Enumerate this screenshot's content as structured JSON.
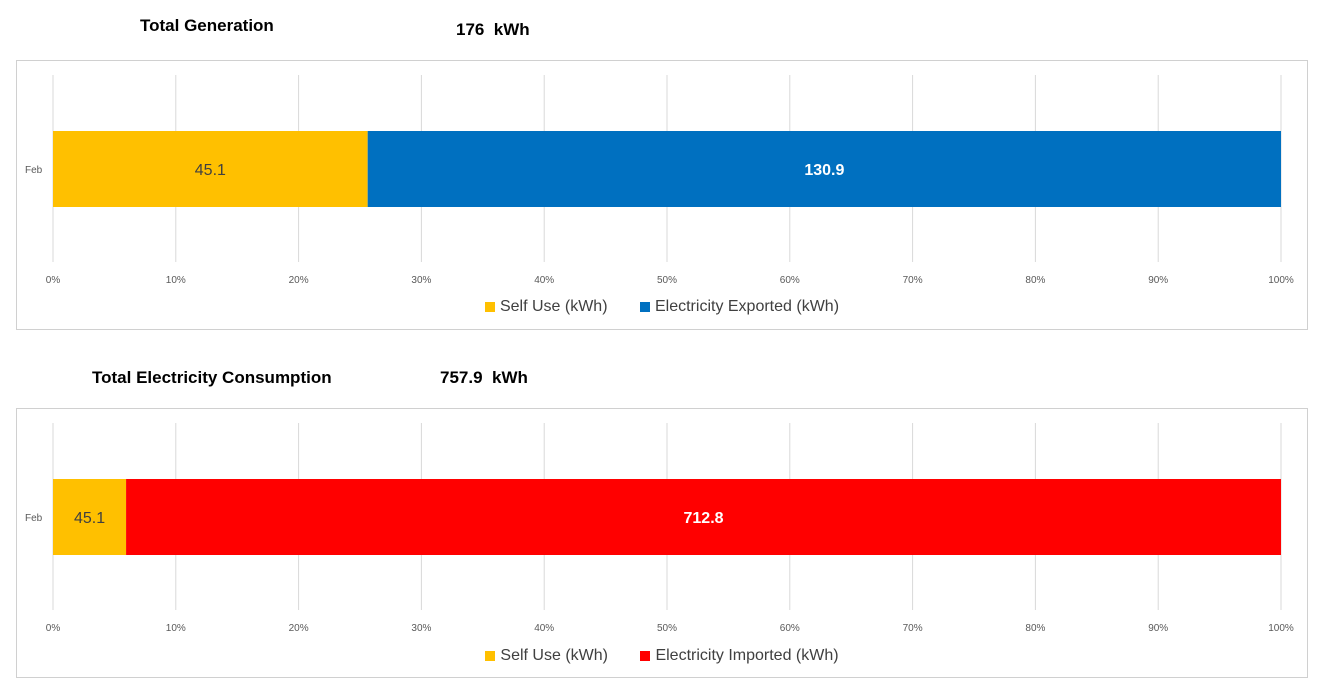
{
  "charts": [
    {
      "heading": "Total Generation",
      "total": "176  kWh",
      "legend_items": [
        {
          "label": "Self Use (kWh)",
          "color": "#FFC000"
        },
        {
          "label": "Electricity Exported (kWh)",
          "color": "#0070C0"
        }
      ]
    },
    {
      "heading": "Total Electricity Consumption",
      "total": "757.9  kWh",
      "legend_items": [
        {
          "label": "Self Use (kWh)",
          "color": "#FFC000"
        },
        {
          "label": "Electricity Imported (kWh)",
          "color": "#FF0000"
        }
      ]
    }
  ],
  "chart_data": [
    {
      "type": "bar",
      "orientation": "horizontal",
      "stacked": "percent",
      "categories": [
        "Feb"
      ],
      "series": [
        {
          "name": "Self Use (kWh)",
          "values": [
            45.1
          ],
          "labels": [
            "45.1"
          ],
          "color": "#FFC000",
          "label_color": "#404040"
        },
        {
          "name": "Electricity Exported (kWh)",
          "values": [
            130.9
          ],
          "labels": [
            "130.9"
          ],
          "color": "#0070C0",
          "label_color": "#ffffff"
        }
      ],
      "x_ticks": [
        "0%",
        "10%",
        "20%",
        "30%",
        "40%",
        "50%",
        "60%",
        "70%",
        "80%",
        "90%",
        "100%"
      ],
      "xlim": [
        0,
        100
      ],
      "grid": true,
      "legend": "bottom"
    },
    {
      "type": "bar",
      "orientation": "horizontal",
      "stacked": "percent",
      "categories": [
        "Feb"
      ],
      "series": [
        {
          "name": "Self Use (kWh)",
          "values": [
            45.1
          ],
          "labels": [
            "45.1"
          ],
          "color": "#FFC000",
          "label_color": "#404040"
        },
        {
          "name": "Electricity Imported (kWh)",
          "values": [
            712.8
          ],
          "labels": [
            "712.8"
          ],
          "color": "#FF0000",
          "label_color": "#ffffff"
        }
      ],
      "x_ticks": [
        "0%",
        "10%",
        "20%",
        "30%",
        "40%",
        "50%",
        "60%",
        "70%",
        "80%",
        "90%",
        "100%"
      ],
      "xlim": [
        0,
        100
      ],
      "grid": true,
      "legend": "bottom"
    }
  ]
}
